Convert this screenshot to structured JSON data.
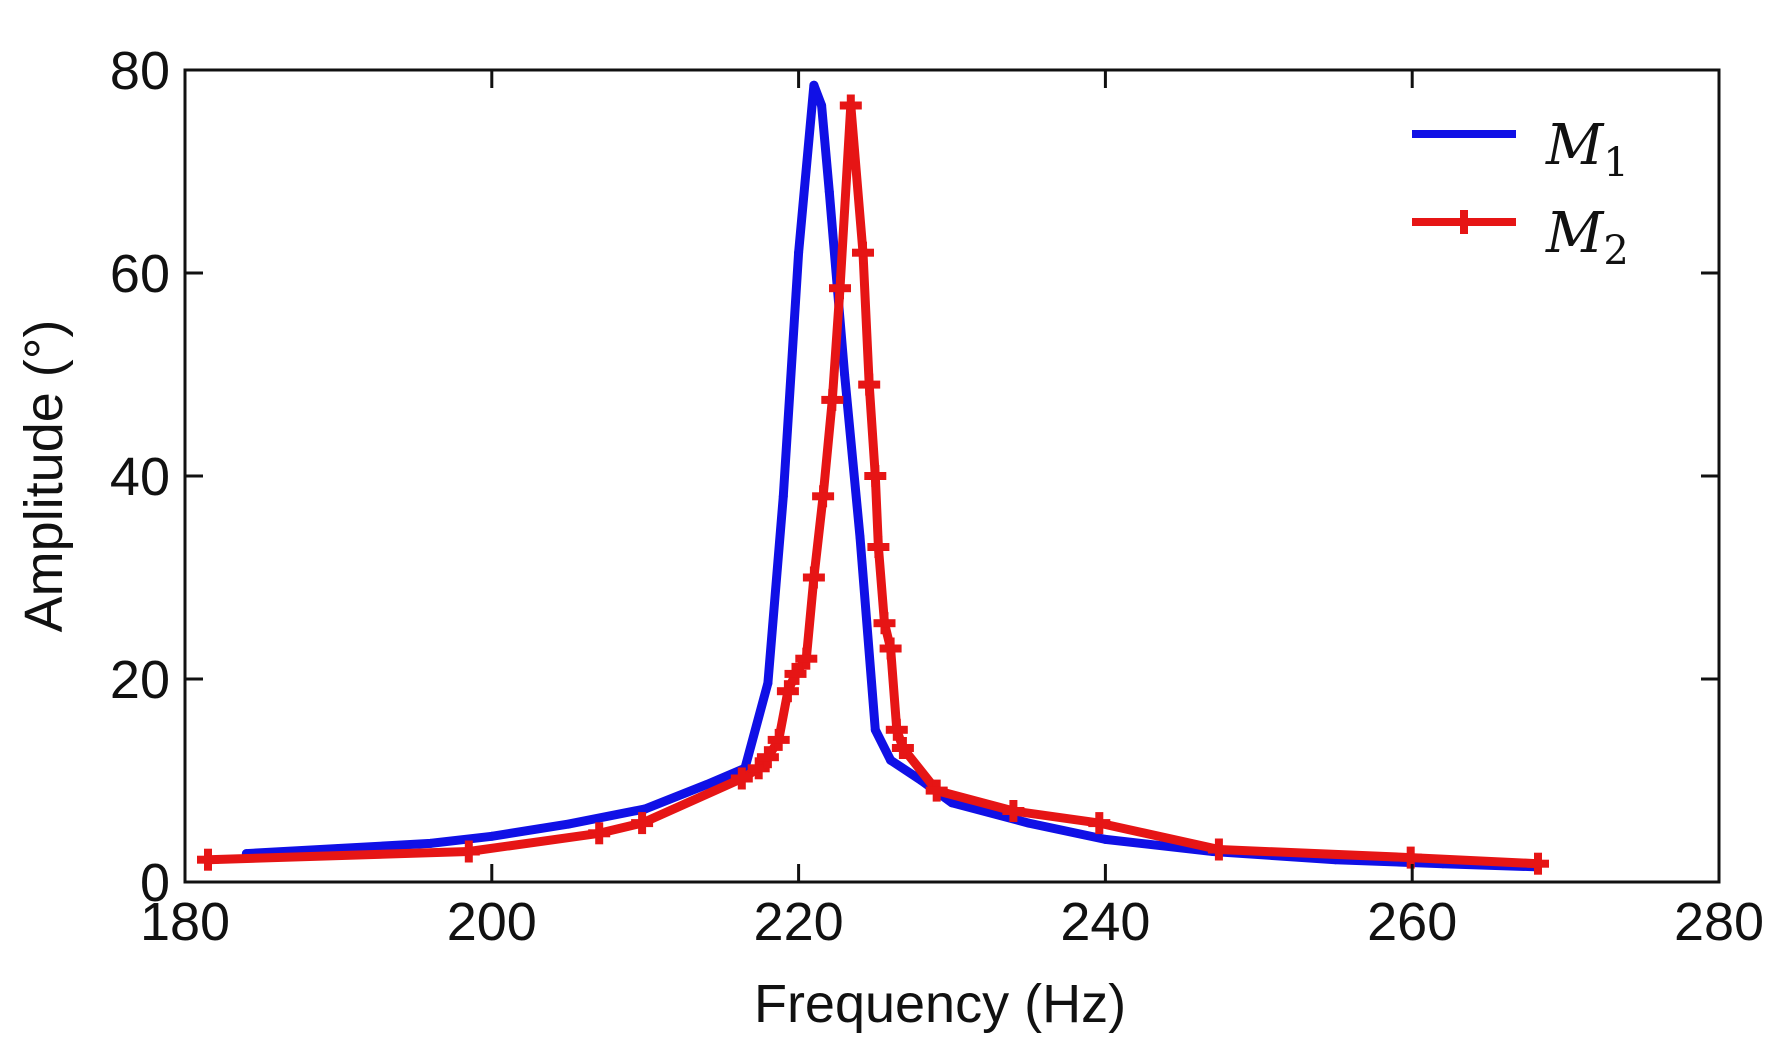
{
  "chart_data": {
    "type": "line",
    "title": "",
    "xlabel": "Frequency (Hz)",
    "ylabel": "Amplitude (°)",
    "xlim": [
      180,
      280
    ],
    "ylim": [
      0,
      80
    ],
    "xticks": [
      180,
      200,
      220,
      240,
      260,
      280
    ],
    "yticks": [
      0,
      20,
      40,
      60,
      80
    ],
    "grid": false,
    "legend_position": "top-right",
    "series": [
      {
        "name": "M1",
        "legend_main": "M",
        "legend_sub": "1",
        "color": "#1010e6",
        "marker": "none",
        "x": [
          184,
          190,
          196,
          200,
          205,
          210,
          214,
          216.5,
          218,
          219,
          220,
          221,
          221.5,
          222,
          223,
          224,
          225,
          226,
          228,
          230,
          235,
          240,
          247,
          255,
          262,
          268
        ],
        "y": [
          2.8,
          3.3,
          3.8,
          4.5,
          5.7,
          7.2,
          9.6,
          11.2,
          19.6,
          38,
          62,
          78.5,
          76.5,
          68,
          50,
          34,
          15,
          12,
          10,
          7.8,
          5.8,
          4.2,
          3,
          2.2,
          1.8,
          1.5
        ]
      },
      {
        "name": "M2",
        "legend_main": "M",
        "legend_sub": "2",
        "color": "#e61515",
        "marker": "plus",
        "x": [
          181.5,
          198.5,
          207,
          209.8,
          216.3,
          217.4,
          218,
          218.7,
          219.3,
          219.8,
          220.5,
          221,
          221.6,
          222.2,
          222.7,
          223.4,
          224.2,
          224.6,
          225,
          225.2,
          225.6,
          226,
          226.4,
          226.8,
          229,
          234,
          239.6,
          247.4,
          259.9,
          268.2
        ],
        "y": [
          2.2,
          3,
          4.8,
          5.8,
          10.2,
          11.2,
          12.3,
          14,
          18.8,
          20.5,
          22,
          30,
          38,
          47.5,
          58.5,
          76.5,
          62,
          49,
          40,
          33,
          25.5,
          23,
          15,
          13.2,
          9,
          7,
          5.8,
          3.2,
          2.4,
          1.8
        ]
      }
    ]
  }
}
